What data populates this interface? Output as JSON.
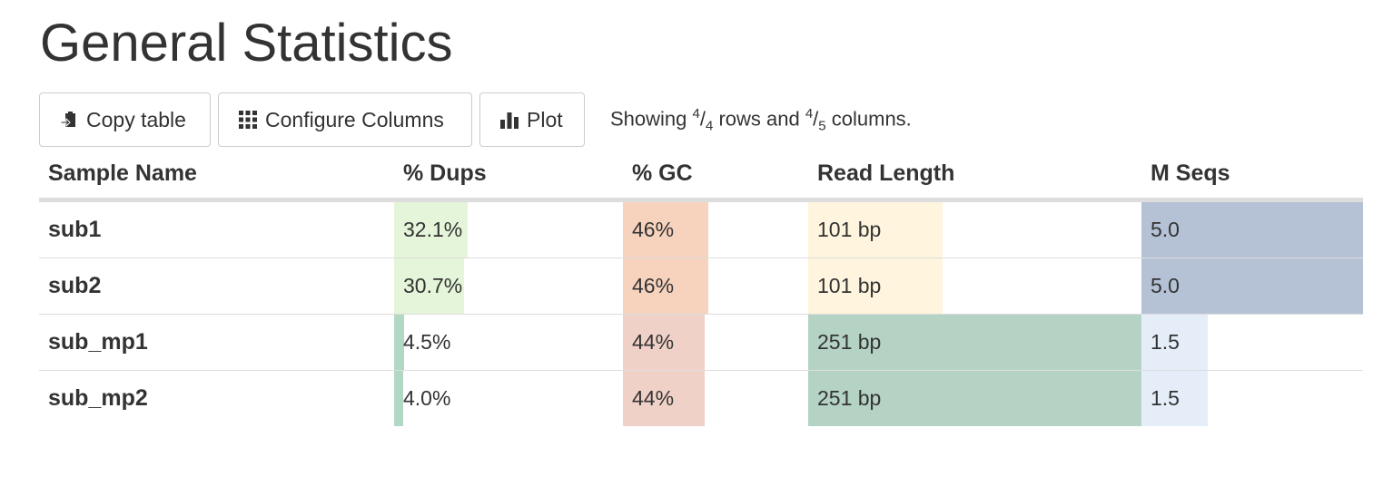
{
  "page_title": "General Statistics",
  "toolbar": {
    "copy_label": "Copy table",
    "configure_label": "Configure Columns",
    "plot_label": "Plot",
    "status": {
      "prefix": "Showing ",
      "rows_shown": "4",
      "rows_total": "4",
      "mid": " rows and ",
      "cols_shown": "4",
      "cols_total": "5",
      "suffix": " columns."
    }
  },
  "table": {
    "headers": [
      "Sample Name",
      "% Dups",
      "% GC",
      "Read Length",
      "M Seqs"
    ],
    "rows": [
      {
        "name": "sub1",
        "dups": "32.1%",
        "dups_frac": 0.321,
        "gc": "46%",
        "gc_frac": 0.46,
        "len": "101 bp",
        "len_frac": 0.402,
        "mseqs": "5.0",
        "mseqs_frac": 1.0
      },
      {
        "name": "sub2",
        "dups": "30.7%",
        "dups_frac": 0.307,
        "gc": "46%",
        "gc_frac": 0.46,
        "len": "101 bp",
        "len_frac": 0.402,
        "mseqs": "5.0",
        "mseqs_frac": 1.0
      },
      {
        "name": "sub_mp1",
        "dups": "4.5%",
        "dups_frac": 0.045,
        "gc": "44%",
        "gc_frac": 0.44,
        "len": "251 bp",
        "len_frac": 1.0,
        "mseqs": "1.5",
        "mseqs_frac": 0.3
      },
      {
        "name": "sub_mp2",
        "dups": "4.0%",
        "dups_frac": 0.04,
        "gc": "44%",
        "gc_frac": 0.44,
        "len": "251 bp",
        "len_frac": 1.0,
        "mseqs": "1.5",
        "mseqs_frac": 0.3
      }
    ]
  },
  "colors": {
    "dups_high": "#e5f5d9",
    "dups_low": "#b2d8c4",
    "gc_46": "#f7d3be",
    "gc_44": "#f0d1c8",
    "len_101": "#fff5de",
    "len_251": "#b5d3c5",
    "mseqs_5": "#b5c2d6",
    "mseqs_1": "#e5eef8"
  }
}
